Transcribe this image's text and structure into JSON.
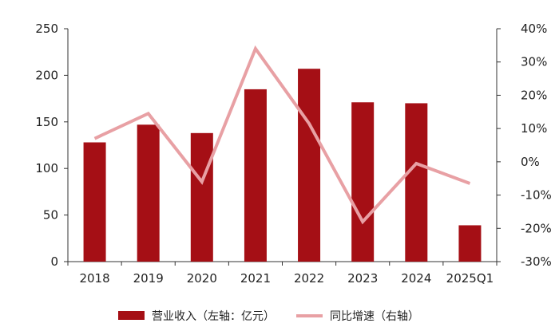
{
  "chart_data": {
    "type": "bar",
    "categories": [
      "2018",
      "2019",
      "2020",
      "2021",
      "2022",
      "2023",
      "2024",
      "2025Q1"
    ],
    "series": [
      {
        "name": "营业收入（左轴：亿元）",
        "type": "bar",
        "axis": "left",
        "color": "#A50F15",
        "values": [
          128,
          147,
          138,
          185,
          207,
          171,
          170,
          39
        ]
      },
      {
        "name": "同比增速（右轴）",
        "type": "line",
        "axis": "right",
        "color": "#E8A0A4",
        "values": [
          7,
          14.5,
          -6,
          34,
          11.5,
          -18,
          -0.5,
          -6.5
        ]
      }
    ],
    "left_axis": {
      "min": 0,
      "max": 250,
      "ticks": [
        "0",
        "50",
        "100",
        "150",
        "200",
        "250"
      ]
    },
    "right_axis": {
      "min": -30,
      "max": 40,
      "ticks": [
        "-30%",
        "-20%",
        "-10%",
        "0%",
        "10%",
        "20%",
        "30%",
        "40%"
      ]
    },
    "grid": false,
    "legend_position": "bottom"
  }
}
